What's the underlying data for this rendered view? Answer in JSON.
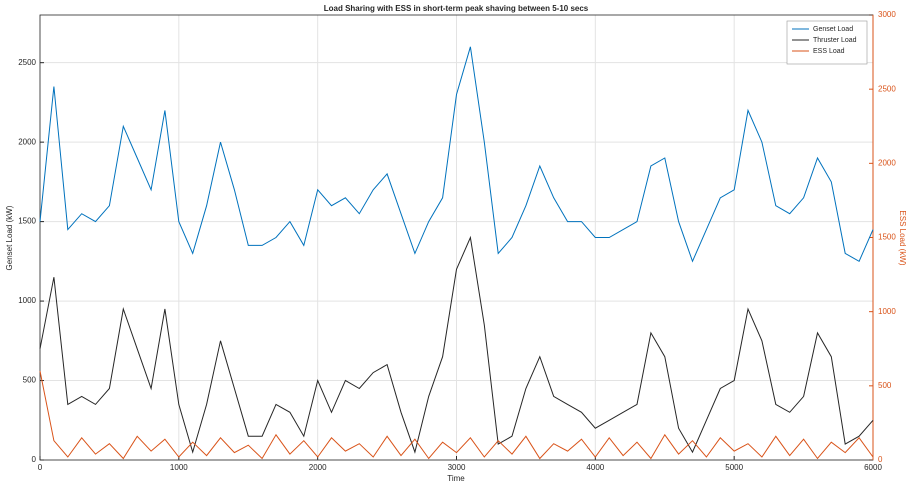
{
  "chart_data": {
    "type": "line",
    "title": "Load Sharing with ESS in short-term peak shaving between 5-10 secs",
    "x_label": "Time",
    "y_label": "Genset Load (kW)",
    "y2_label": "ESS Load (kW)",
    "x": [
      0,
      100,
      200,
      300,
      400,
      500,
      600,
      700,
      800,
      900,
      1000,
      1100,
      1200,
      1300,
      1400,
      1500,
      1600,
      1700,
      1800,
      1900,
      2000,
      2100,
      2200,
      2300,
      2400,
      2500,
      2600,
      2700,
      2800,
      2900,
      3000,
      3100,
      3200,
      3300,
      3400,
      3500,
      3600,
      3700,
      3800,
      3900,
      4000,
      4100,
      4200,
      4300,
      4400,
      4500,
      4600,
      4700,
      4800,
      4900,
      5000,
      5100,
      5200,
      5300,
      5400,
      5500,
      5600,
      5700,
      5800,
      5900,
      6000
    ],
    "series": [
      {
        "name": "Genset Load",
        "color": "#0072bd",
        "values": [
          1500,
          2350,
          1450,
          1550,
          1500,
          1600,
          2100,
          1900,
          1700,
          2200,
          1500,
          1300,
          1600,
          2000,
          1700,
          1350,
          1350,
          1400,
          1500,
          1350,
          1700,
          1600,
          1650,
          1550,
          1700,
          1800,
          1550,
          1300,
          1500,
          1650,
          2300,
          2600,
          2000,
          1300,
          1400,
          1600,
          1850,
          1650,
          1500,
          1500,
          1400,
          1400,
          1450,
          1500,
          1850,
          1900,
          1500,
          1250,
          1450,
          1650,
          1700,
          2200,
          2000,
          1600,
          1550,
          1650,
          1900,
          1750,
          1300,
          1250,
          1450
        ]
      },
      {
        "name": "Thruster Load",
        "color": "#262626",
        "values": [
          700,
          1150,
          350,
          400,
          350,
          450,
          950,
          700,
          450,
          950,
          350,
          50,
          350,
          750,
          450,
          150,
          150,
          350,
          300,
          150,
          500,
          300,
          500,
          450,
          550,
          600,
          300,
          50,
          400,
          650,
          1200,
          1400,
          850,
          100,
          150,
          450,
          650,
          400,
          350,
          300,
          200,
          250,
          300,
          350,
          800,
          650,
          200,
          50,
          250,
          450,
          500,
          950,
          750,
          350,
          300,
          400,
          800,
          650,
          100,
          150,
          250
        ]
      },
      {
        "name": "ESS Load",
        "color": "#d95319",
        "axis": "y2",
        "values": [
          600,
          130,
          20,
          150,
          40,
          110,
          10,
          160,
          60,
          140,
          20,
          120,
          30,
          150,
          50,
          100,
          10,
          170,
          40,
          130,
          20,
          150,
          60,
          110,
          20,
          160,
          30,
          140,
          10,
          120,
          50,
          150,
          20,
          130,
          40,
          160,
          10,
          110,
          60,
          140,
          20,
          150,
          30,
          120,
          10,
          170,
          40,
          130,
          20,
          150,
          60,
          110,
          20,
          160,
          30,
          140,
          10,
          120,
          50,
          150,
          20
        ]
      }
    ],
    "xlim": [
      0,
      6000
    ],
    "xticks": [
      0,
      1000,
      2000,
      3000,
      4000,
      5000,
      6000
    ],
    "ylim": [
      0,
      2800
    ],
    "yticks": [
      0,
      500,
      1000,
      1500,
      2000,
      2500
    ],
    "y2lim": [
      0,
      3000
    ],
    "y2ticks": [
      0,
      500,
      1000,
      1500,
      2000,
      2500,
      3000
    ],
    "grid": true,
    "legend": "top-right"
  }
}
